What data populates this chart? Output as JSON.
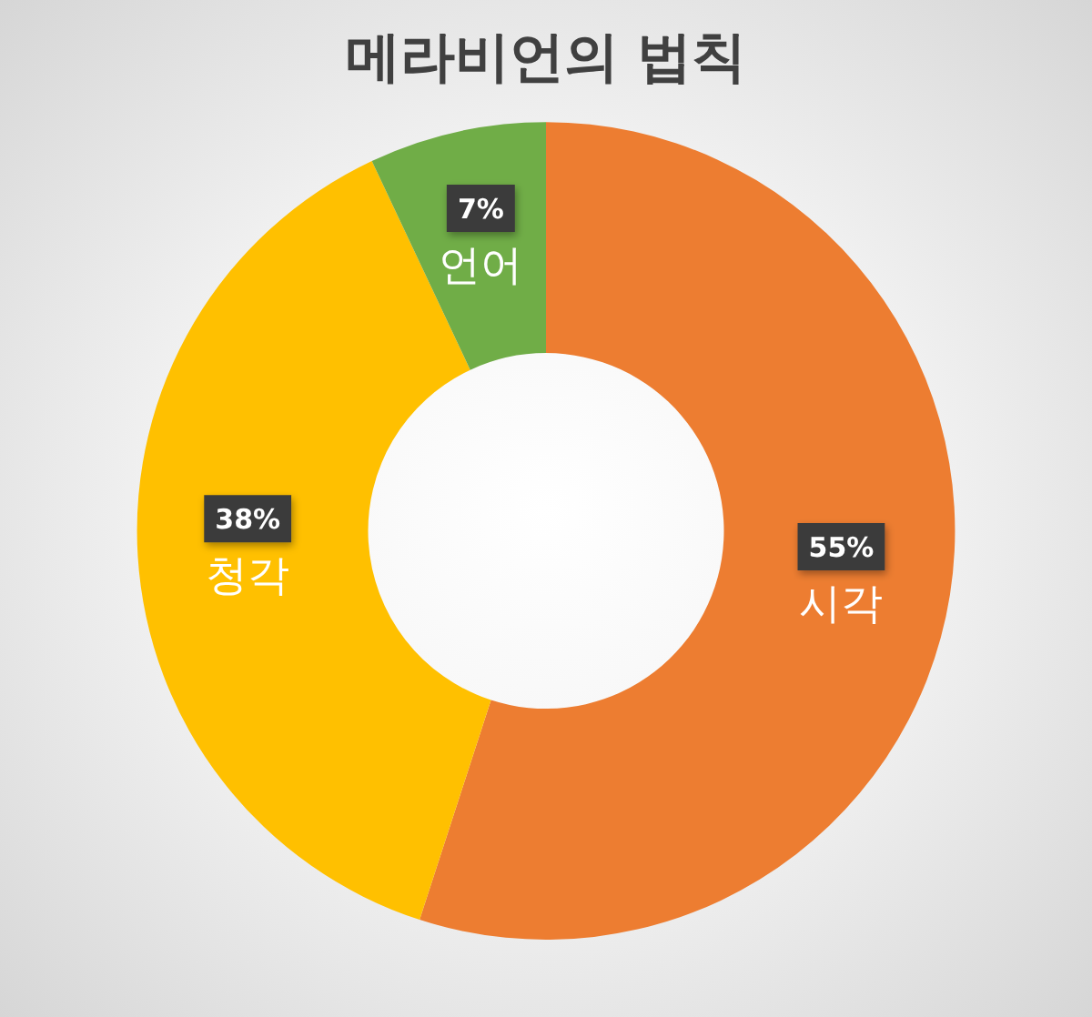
{
  "chart_data": {
    "type": "donut",
    "title": "메라비언의 법칙",
    "categories": [
      "시각",
      "청각",
      "언어"
    ],
    "values": [
      55,
      38,
      7
    ],
    "colors": [
      "#ed7d31",
      "#ffc000",
      "#70ad47"
    ],
    "value_labels": [
      "55%",
      "38%",
      "7%"
    ]
  }
}
